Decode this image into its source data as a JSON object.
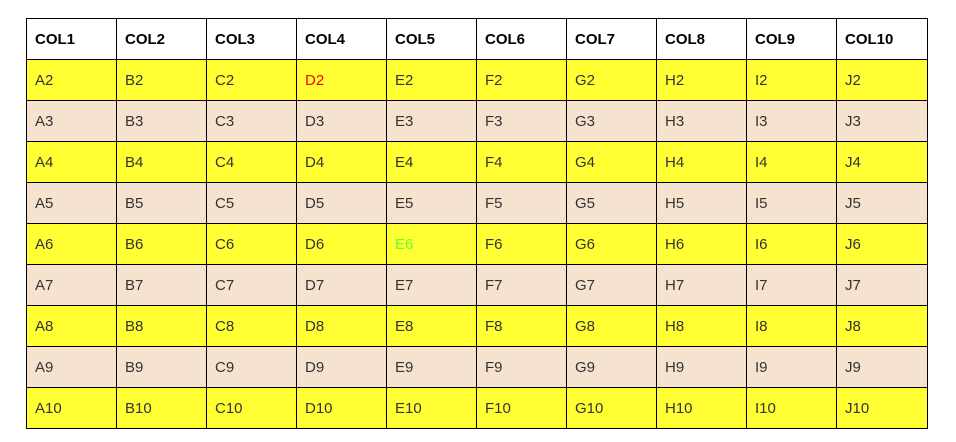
{
  "colors": {
    "header_bg": "#ffffff",
    "row_highlight_bg": "#ffff33",
    "row_alt_bg": "#f5e3cf",
    "border": "#000000",
    "text": "#333333",
    "special_red": "#ff0000",
    "special_green": "#66ff33"
  },
  "table": {
    "headers": [
      "COL1",
      "COL2",
      "COL3",
      "COL4",
      "COL5",
      "COL6",
      "COL7",
      "COL8",
      "COL9",
      "COL10"
    ],
    "rows": [
      [
        "A2",
        "B2",
        "C2",
        "D2",
        "E2",
        "F2",
        "G2",
        "H2",
        "I2",
        "J2"
      ],
      [
        "A3",
        "B3",
        "C3",
        "D3",
        "E3",
        "F3",
        "G3",
        "H3",
        "I3",
        "J3"
      ],
      [
        "A4",
        "B4",
        "C4",
        "D4",
        "E4",
        "F4",
        "G4",
        "H4",
        "I4",
        "J4"
      ],
      [
        "A5",
        "B5",
        "C5",
        "D5",
        "E5",
        "F5",
        "G5",
        "H5",
        "I5",
        "J5"
      ],
      [
        "A6",
        "B6",
        "C6",
        "D6",
        "E6",
        "F6",
        "G6",
        "H6",
        "I6",
        "J6"
      ],
      [
        "A7",
        "B7",
        "C7",
        "D7",
        "E7",
        "F7",
        "G7",
        "H7",
        "I7",
        "J7"
      ],
      [
        "A8",
        "B8",
        "C8",
        "D8",
        "E8",
        "F8",
        "G8",
        "H8",
        "I8",
        "J8"
      ],
      [
        "A9",
        "B9",
        "C9",
        "D9",
        "E9",
        "F9",
        "G9",
        "H9",
        "I9",
        "J9"
      ],
      [
        "A10",
        "B10",
        "C10",
        "D10",
        "E10",
        "F10",
        "G10",
        "H10",
        "I10",
        "J10"
      ]
    ],
    "special_cells": {
      "D2": "#ff0000",
      "E6": "#66ff33"
    }
  }
}
